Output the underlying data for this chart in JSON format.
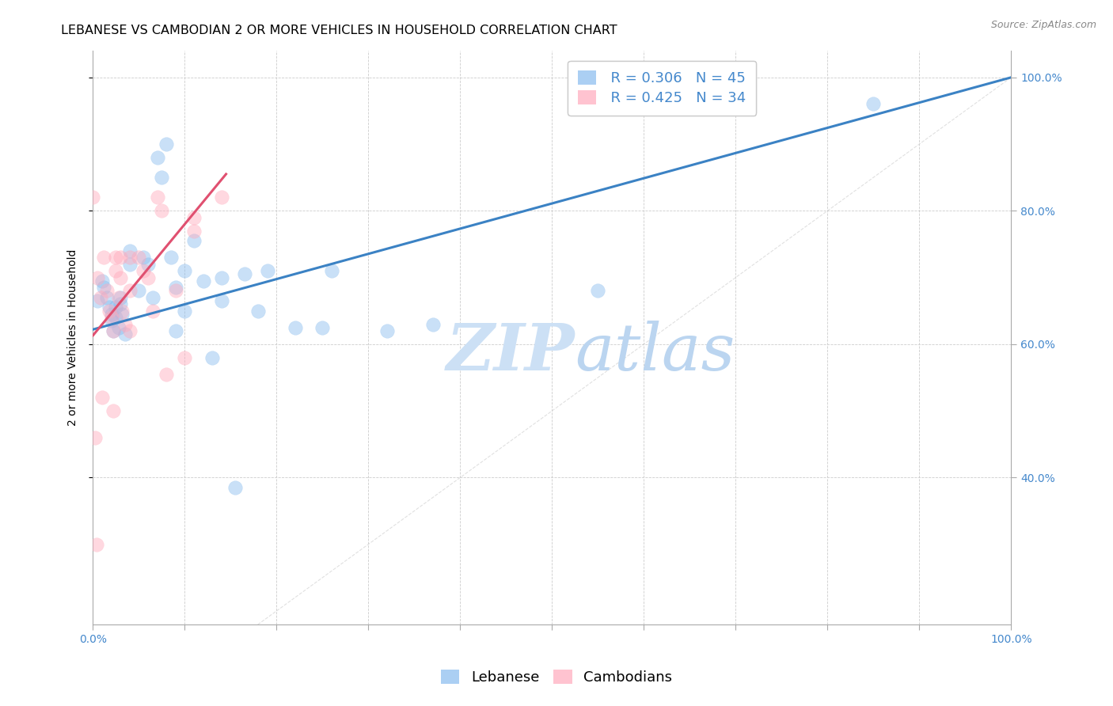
{
  "title": "LEBANESE VS CAMBODIAN 2 OR MORE VEHICLES IN HOUSEHOLD CORRELATION CHART",
  "source": "Source: ZipAtlas.com",
  "ylabel": "2 or more Vehicles in Household",
  "xlim": [
    0.0,
    1.0
  ],
  "ylim": [
    0.18,
    1.04
  ],
  "xtick_labels_ends": [
    "0.0%",
    "100.0%"
  ],
  "xtick_vals_ends": [
    0.0,
    1.0
  ],
  "ytick_labels": [
    "40.0%",
    "60.0%",
    "80.0%",
    "100.0%"
  ],
  "ytick_vals": [
    0.4,
    0.6,
    0.8,
    1.0
  ],
  "lebanese_color": "#88BBEE",
  "cambodian_color": "#FFAABC",
  "lebanese_line_color": "#3B82C4",
  "cambodian_line_color": "#E05070",
  "diagonal_color": "#CCCCCC",
  "lebanese_R": 0.306,
  "lebanese_N": 45,
  "cambodian_R": 0.425,
  "cambodian_N": 34,
  "lebanese_x": [
    0.005,
    0.01,
    0.012,
    0.015,
    0.018,
    0.02,
    0.02,
    0.022,
    0.025,
    0.025,
    0.028,
    0.03,
    0.03,
    0.032,
    0.035,
    0.04,
    0.04,
    0.05,
    0.055,
    0.06,
    0.065,
    0.07,
    0.075,
    0.08,
    0.085,
    0.09,
    0.09,
    0.1,
    0.1,
    0.11,
    0.12,
    0.13,
    0.14,
    0.14,
    0.155,
    0.165,
    0.18,
    0.19,
    0.22,
    0.25,
    0.26,
    0.32,
    0.37,
    0.55,
    0.85
  ],
  "lebanese_y": [
    0.665,
    0.695,
    0.685,
    0.67,
    0.655,
    0.645,
    0.635,
    0.62,
    0.655,
    0.64,
    0.625,
    0.67,
    0.66,
    0.645,
    0.615,
    0.74,
    0.72,
    0.68,
    0.73,
    0.72,
    0.67,
    0.88,
    0.85,
    0.9,
    0.73,
    0.685,
    0.62,
    0.71,
    0.65,
    0.755,
    0.695,
    0.58,
    0.7,
    0.665,
    0.385,
    0.705,
    0.65,
    0.71,
    0.625,
    0.625,
    0.71,
    0.62,
    0.63,
    0.68,
    0.96
  ],
  "cambodian_x": [
    0.0,
    0.002,
    0.004,
    0.005,
    0.008,
    0.01,
    0.012,
    0.015,
    0.018,
    0.02,
    0.022,
    0.022,
    0.025,
    0.025,
    0.028,
    0.03,
    0.03,
    0.032,
    0.035,
    0.04,
    0.04,
    0.04,
    0.05,
    0.055,
    0.06,
    0.065,
    0.07,
    0.075,
    0.08,
    0.09,
    0.1,
    0.11,
    0.11,
    0.14
  ],
  "cambodian_y": [
    0.82,
    0.46,
    0.3,
    0.7,
    0.67,
    0.52,
    0.73,
    0.68,
    0.65,
    0.64,
    0.62,
    0.5,
    0.73,
    0.71,
    0.67,
    0.73,
    0.7,
    0.65,
    0.63,
    0.73,
    0.68,
    0.62,
    0.73,
    0.71,
    0.7,
    0.65,
    0.82,
    0.8,
    0.555,
    0.68,
    0.58,
    0.79,
    0.77,
    0.82
  ],
  "lebanese_line_x": [
    0.0,
    1.0
  ],
  "lebanese_line_y": [
    0.622,
    1.0
  ],
  "cambodian_line_x": [
    0.0,
    0.145
  ],
  "cambodian_line_y": [
    0.613,
    0.855
  ],
  "background_color": "#FFFFFF",
  "grid_color": "#CCCCCC",
  "title_fontsize": 11.5,
  "axis_label_fontsize": 10,
  "tick_fontsize": 10,
  "legend_fontsize": 13,
  "source_fontsize": 9
}
